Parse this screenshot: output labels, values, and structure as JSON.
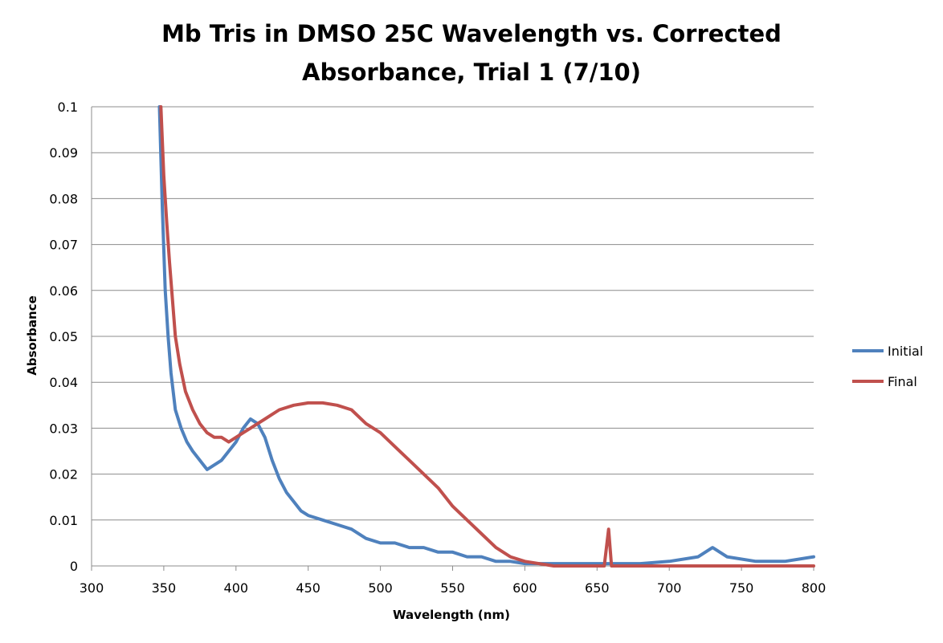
{
  "chart_data": {
    "type": "line",
    "title_lines": [
      "Mb Tris in DMSO 25C Wavelength vs. Corrected",
      "Absorbance, Trial 1 (7/10)"
    ],
    "xlabel": "Wavelength (nm)",
    "ylabel": "Absorbance",
    "xlim": [
      300,
      800
    ],
    "ylim": [
      0,
      0.1
    ],
    "x_ticks": [
      "300",
      "350",
      "400",
      "450",
      "500",
      "550",
      "600",
      "650",
      "700",
      "750",
      "800"
    ],
    "y_ticks": [
      "0",
      "0.01",
      "0.02",
      "0.03",
      "0.04",
      "0.05",
      "0.06",
      "0.07",
      "0.08",
      "0.09",
      "0.1"
    ],
    "grid": "horizontal",
    "legend_position": "right",
    "series": [
      {
        "name": "Initial",
        "color": "#4f81bd",
        "x": [
          347,
          349,
          351,
          353,
          355,
          358,
          362,
          366,
          370,
          375,
          380,
          385,
          390,
          395,
          400,
          405,
          410,
          415,
          420,
          425,
          430,
          435,
          440,
          445,
          450,
          460,
          470,
          480,
          490,
          500,
          510,
          520,
          530,
          540,
          550,
          560,
          570,
          580,
          590,
          600,
          620,
          640,
          660,
          680,
          700,
          720,
          730,
          735,
          740,
          760,
          780,
          800
        ],
        "y": [
          0.1,
          0.078,
          0.06,
          0.05,
          0.042,
          0.034,
          0.03,
          0.027,
          0.025,
          0.023,
          0.021,
          0.022,
          0.023,
          0.025,
          0.027,
          0.03,
          0.032,
          0.031,
          0.028,
          0.023,
          0.019,
          0.016,
          0.014,
          0.012,
          0.011,
          0.01,
          0.009,
          0.008,
          0.006,
          0.005,
          0.005,
          0.004,
          0.004,
          0.003,
          0.003,
          0.002,
          0.002,
          0.001,
          0.001,
          0.0005,
          0.0005,
          0.0005,
          0.0005,
          0.0005,
          0.001,
          0.002,
          0.004,
          0.003,
          0.002,
          0.001,
          0.001,
          0.002
        ]
      },
      {
        "name": "Final",
        "color": "#c0504d",
        "x": [
          348,
          350,
          352,
          354,
          356,
          358,
          361,
          365,
          370,
          375,
          380,
          385,
          390,
          395,
          400,
          405,
          410,
          415,
          420,
          425,
          430,
          440,
          450,
          460,
          470,
          480,
          490,
          500,
          510,
          520,
          530,
          540,
          550,
          560,
          570,
          580,
          590,
          600,
          620,
          640,
          655,
          658,
          660,
          680,
          700,
          720,
          740,
          760,
          780,
          800
        ],
        "y": [
          0.1,
          0.085,
          0.075,
          0.066,
          0.058,
          0.05,
          0.044,
          0.038,
          0.034,
          0.031,
          0.029,
          0.028,
          0.028,
          0.027,
          0.028,
          0.029,
          0.03,
          0.031,
          0.032,
          0.033,
          0.034,
          0.035,
          0.0355,
          0.0355,
          0.035,
          0.034,
          0.031,
          0.029,
          0.026,
          0.023,
          0.02,
          0.017,
          0.013,
          0.01,
          0.007,
          0.004,
          0.002,
          0.001,
          0.0,
          0.0,
          0.0,
          0.008,
          0.0,
          0.0,
          0.0,
          0.0,
          0.0,
          0.0,
          0.0,
          0.0
        ]
      }
    ]
  }
}
